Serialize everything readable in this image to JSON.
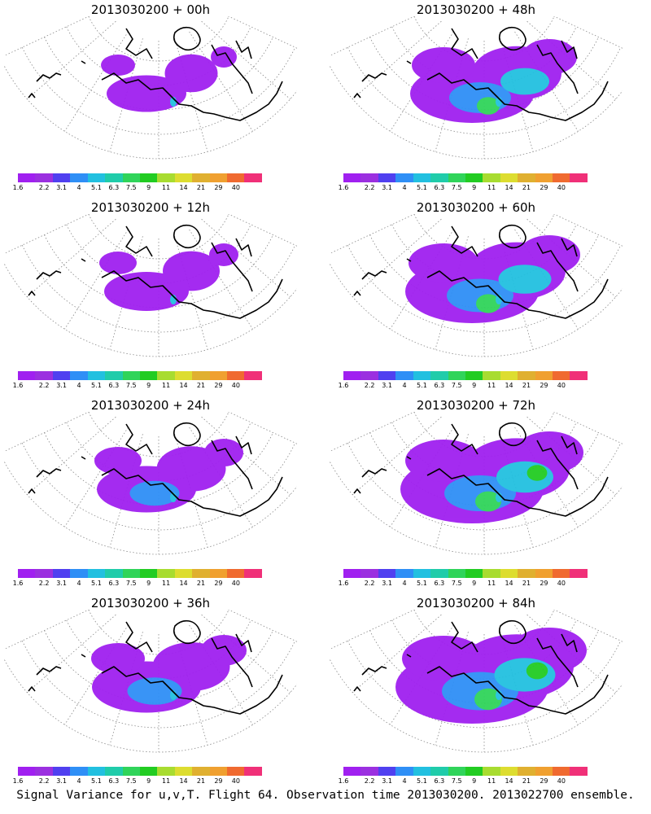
{
  "panels": [
    {
      "title": "2013030200 + 00h",
      "intensity": 0.15
    },
    {
      "title": "2013030200 + 48h",
      "intensity": 0.6
    },
    {
      "title": "2013030200 + 12h",
      "intensity": 0.2
    },
    {
      "title": "2013030200 + 60h",
      "intensity": 0.7
    },
    {
      "title": "2013030200 + 24h",
      "intensity": 0.35
    },
    {
      "title": "2013030200 + 72h",
      "intensity": 0.8
    },
    {
      "title": "2013030200 + 36h",
      "intensity": 0.45
    },
    {
      "title": "2013030200 + 84h",
      "intensity": 0.9
    }
  ],
  "colorbar": {
    "colors": [
      "#a020f0",
      "#9b30e0",
      "#5040f0",
      "#2f8ff6",
      "#22c0e0",
      "#20ccaa",
      "#30d45a",
      "#22cc22",
      "#a8dc30",
      "#dddd30",
      "#e0b030",
      "#f0a030",
      "#f06a30",
      "#f03078"
    ],
    "labels": [
      "1.6",
      "2.2",
      "3.1",
      "4",
      "5.1",
      "6.3",
      "7.5",
      "9",
      "11",
      "14",
      "21",
      "29",
      "40"
    ]
  },
  "caption": "Signal Variance for u,v,T. Flight 64. Observation time 2013030200. 2013022700 ensemble."
}
